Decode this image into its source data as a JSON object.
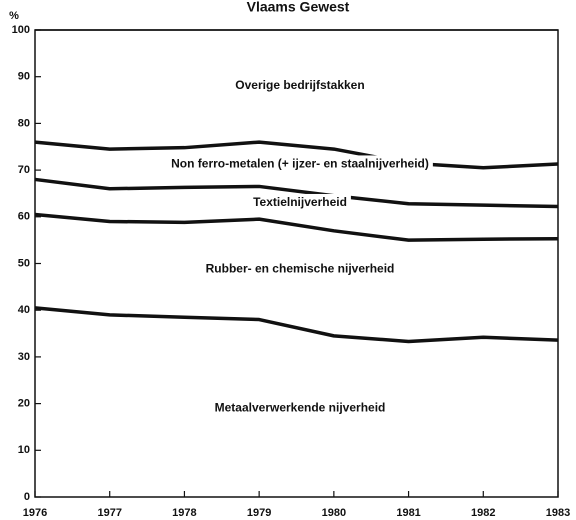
{
  "chart_data": {
    "type": "stacked_line",
    "title": "Vlaams Gewest",
    "ylabel": "%",
    "x": [
      1976,
      1977,
      1978,
      1979,
      1980,
      1981,
      1982,
      1983
    ],
    "xlim": [
      1976,
      1983
    ],
    "xticks": [
      1976,
      1977,
      1978,
      1979,
      1980,
      1981,
      1982,
      1983
    ],
    "ylim": [
      0,
      100
    ],
    "yticks": [
      0,
      10,
      20,
      30,
      40,
      50,
      60,
      70,
      80,
      90,
      100
    ],
    "grid": false,
    "series": [
      {
        "name": "Metaalverwerkende nijverheid",
        "color": "#111111",
        "values": [
          40.5,
          39,
          38.5,
          38,
          34.5,
          33.3,
          34.2,
          33.6
        ]
      },
      {
        "name": "Rubber- en chemische nijverheid",
        "color": "#111111",
        "values": [
          20,
          20,
          20.3,
          21.5,
          22.5,
          21.7,
          21,
          21.7
        ]
      },
      {
        "name": "Textielnijverheid",
        "color": "#111111",
        "values": [
          7.5,
          7,
          7.5,
          7,
          7.5,
          7.8,
          7.3,
          6.9
        ]
      },
      {
        "name": "Non ferro-metalen (+ ijzer- en staalnijverheid)",
        "color": "#111111",
        "values": [
          8,
          8.5,
          8.5,
          9.5,
          10,
          8.7,
          8,
          9.1
        ]
      },
      {
        "name": "Overige bedrijfstakken",
        "color": "#111111",
        "values": [
          24,
          25.5,
          25.2,
          24,
          25.5,
          28.5,
          29.5,
          28.7
        ]
      }
    ]
  }
}
